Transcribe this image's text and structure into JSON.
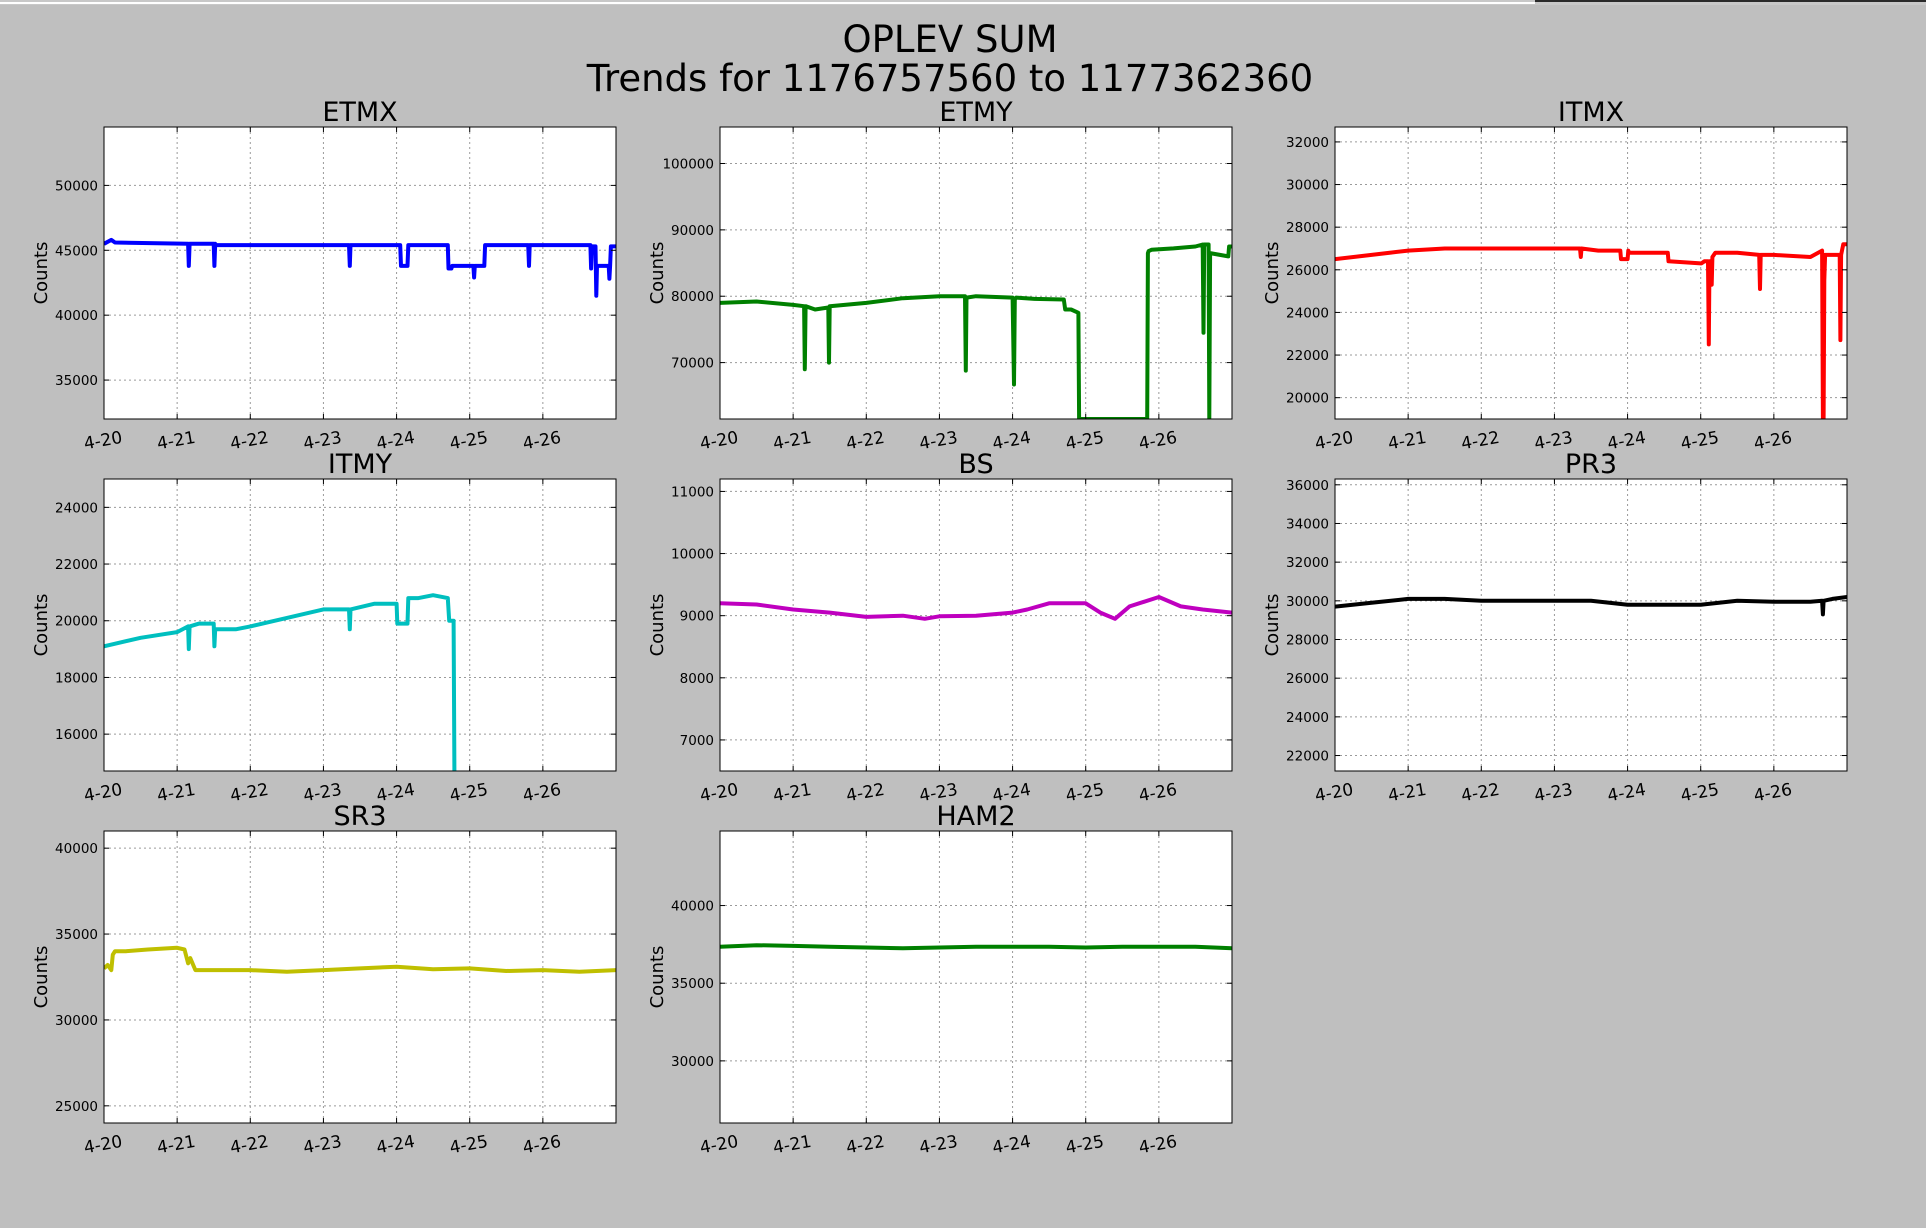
{
  "figure": {
    "title_line1": "OPLEV SUM",
    "title_line2": "Trends for 1176757560 to 1177362360"
  },
  "chart_data": [
    {
      "type": "line",
      "title": "ETMX",
      "ylabel": "Counts",
      "color": "#0000ff",
      "grid": true,
      "xlim": [
        0,
        7
      ],
      "ylim": [
        32000,
        54500
      ],
      "xticks": [
        0,
        1,
        2,
        3,
        4,
        5,
        6
      ],
      "xticklabels": [
        "4-20",
        "4-21",
        "4-22",
        "4-23",
        "4-24",
        "4-25",
        "4-26"
      ],
      "yticks": [
        35000,
        40000,
        45000,
        50000
      ],
      "series": [
        {
          "x": [
            0,
            0.1,
            0.15,
            1.15,
            1.16,
            1.17,
            1.18,
            1.5,
            1.51,
            1.52,
            1.53,
            2.3,
            3.35,
            3.36,
            3.37,
            3.38,
            4.0,
            4.05,
            4.06,
            4.15,
            4.16,
            4.2,
            4.7,
            4.71,
            4.75,
            4.76,
            5.05,
            5.06,
            5.07,
            5.08,
            5.2,
            5.21,
            5.8,
            5.81,
            5.82,
            5.83,
            6.65,
            6.66,
            6.67,
            6.68,
            6.72,
            6.73,
            6.74,
            6.75,
            6.9,
            6.91,
            6.92,
            6.93,
            6.94,
            7.0
          ],
          "y": [
            45500,
            45800,
            45600,
            45500,
            43800,
            45500,
            45500,
            45500,
            43800,
            45500,
            45400,
            45400,
            45400,
            43800,
            45400,
            45400,
            45400,
            45400,
            43800,
            43800,
            45400,
            45400,
            45400,
            43600,
            43600,
            43800,
            43800,
            42900,
            43800,
            43800,
            43800,
            45400,
            45400,
            43800,
            45400,
            45400,
            45400,
            43600,
            45300,
            45300,
            45300,
            41500,
            43800,
            43800,
            43800,
            42800,
            43800,
            45300,
            45300,
            45300
          ]
        }
      ]
    },
    {
      "type": "line",
      "title": "ETMY",
      "ylabel": "Counts",
      "color": "#008000",
      "grid": true,
      "xlim": [
        0,
        7
      ],
      "ylim": [
        61500,
        105500
      ],
      "xticks": [
        0,
        1,
        2,
        3,
        4,
        5,
        6
      ],
      "xticklabels": [
        "4-20",
        "4-21",
        "4-22",
        "4-23",
        "4-24",
        "4-25",
        "4-26"
      ],
      "yticks": [
        70000,
        80000,
        90000,
        100000
      ],
      "series": [
        {
          "x": [
            0,
            0.5,
            1.0,
            1.15,
            1.16,
            1.17,
            1.3,
            1.48,
            1.49,
            1.5,
            2.0,
            2.5,
            3.0,
            3.35,
            3.36,
            3.37,
            3.5,
            4.0,
            4.02,
            4.03,
            4.05,
            4.3,
            4.7,
            4.72,
            4.8,
            4.9,
            4.91,
            4.92,
            5.84,
            5.85,
            5.86,
            5.9,
            6.2,
            6.5,
            6.6,
            6.61,
            6.62,
            6.68,
            6.69,
            6.7,
            6.95,
            6.96,
            7.0
          ],
          "y": [
            79000,
            79200,
            78700,
            78500,
            69000,
            78500,
            78000,
            78300,
            70000,
            78500,
            79000,
            79700,
            80000,
            80000,
            68800,
            79800,
            80000,
            79800,
            66700,
            79500,
            79800,
            79600,
            79500,
            78000,
            78000,
            77500,
            61500,
            61500,
            61500,
            86500,
            86800,
            87000,
            87200,
            87500,
            87800,
            74500,
            87800,
            87800,
            61500,
            86500,
            86000,
            87500,
            87500
          ]
        }
      ]
    },
    {
      "type": "line",
      "title": "ITMX",
      "ylabel": "Counts",
      "color": "#ff0000",
      "grid": true,
      "xlim": [
        0,
        7
      ],
      "ylim": [
        19000,
        32700
      ],
      "xticks": [
        0,
        1,
        2,
        3,
        4,
        5,
        6
      ],
      "xticklabels": [
        "4-20",
        "4-21",
        "4-22",
        "4-23",
        "4-24",
        "4-25",
        "4-26"
      ],
      "yticks": [
        20000,
        22000,
        24000,
        26000,
        28000,
        30000,
        32000
      ],
      "series": [
        {
          "x": [
            0,
            0.5,
            1.0,
            1.5,
            2.0,
            2.5,
            3.0,
            3.35,
            3.36,
            3.37,
            3.6,
            3.9,
            3.91,
            4.0,
            4.01,
            4.02,
            4.5,
            4.55,
            4.56,
            5.0,
            5.01,
            5.05,
            5.1,
            5.11,
            5.12,
            5.13,
            5.15,
            5.16,
            5.2,
            5.5,
            5.8,
            5.81,
            5.82,
            6.0,
            6.5,
            6.66,
            6.67,
            6.68,
            6.69,
            6.7,
            6.71,
            6.9,
            6.91,
            6.92,
            6.95,
            7.0
          ],
          "y": [
            26500,
            26700,
            26900,
            27000,
            27000,
            27000,
            27000,
            27000,
            26600,
            27000,
            26900,
            26900,
            26500,
            26500,
            26900,
            26800,
            26800,
            26800,
            26400,
            26300,
            26300,
            26400,
            26400,
            22500,
            26400,
            26400,
            25300,
            26600,
            26800,
            26800,
            26700,
            25100,
            26700,
            26700,
            26600,
            26900,
            19000,
            19000,
            25500,
            26700,
            26700,
            26700,
            22700,
            26700,
            27200,
            27200
          ]
        }
      ]
    },
    {
      "type": "line",
      "title": "ITMY",
      "ylabel": "Counts",
      "color": "#00bfbf",
      "grid": true,
      "xlim": [
        0,
        7
      ],
      "ylim": [
        14700,
        25000
      ],
      "xticks": [
        0,
        1,
        2,
        3,
        4,
        5,
        6
      ],
      "xticklabels": [
        "4-20",
        "4-21",
        "4-22",
        "4-23",
        "4-24",
        "4-25",
        "4-26"
      ],
      "yticks": [
        16000,
        18000,
        20000,
        22000,
        24000
      ],
      "series": [
        {
          "x": [
            0,
            0.5,
            1.0,
            1.15,
            1.16,
            1.17,
            1.3,
            1.5,
            1.51,
            1.52,
            1.8,
            2.0,
            2.5,
            3.0,
            3.35,
            3.36,
            3.37,
            3.7,
            4.0,
            4.01,
            4.02,
            4.15,
            4.16,
            4.3,
            4.5,
            4.7,
            4.72,
            4.73,
            4.78,
            4.79,
            4.8
          ],
          "y": [
            19100,
            19400,
            19600,
            19800,
            19000,
            19800,
            19900,
            19900,
            19100,
            19700,
            19700,
            19800,
            20100,
            20400,
            20400,
            19700,
            20400,
            20600,
            20600,
            19900,
            19900,
            19900,
            20800,
            20800,
            20900,
            20800,
            20000,
            20000,
            20000,
            14700,
            14700
          ]
        }
      ]
    },
    {
      "type": "line",
      "title": "BS",
      "ylabel": "Counts",
      "color": "#bf00bf",
      "grid": true,
      "xlim": [
        0,
        7
      ],
      "ylim": [
        6500,
        11200
      ],
      "xticks": [
        0,
        1,
        2,
        3,
        4,
        5,
        6
      ],
      "xticklabels": [
        "4-20",
        "4-21",
        "4-22",
        "4-23",
        "4-24",
        "4-25",
        "4-26"
      ],
      "yticks": [
        7000,
        8000,
        9000,
        10000,
        11000
      ],
      "series": [
        {
          "x": [
            0,
            0.5,
            1.0,
            1.5,
            2.0,
            2.5,
            2.8,
            3.0,
            3.5,
            4.0,
            4.2,
            4.5,
            5.0,
            5.2,
            5.4,
            5.6,
            6.0,
            6.3,
            6.6,
            7.0
          ],
          "y": [
            9200,
            9180,
            9100,
            9050,
            8980,
            9000,
            8950,
            8990,
            9000,
            9050,
            9100,
            9200,
            9200,
            9050,
            8950,
            9150,
            9300,
            9150,
            9100,
            9050
          ]
        }
      ]
    },
    {
      "type": "line",
      "title": "PR3",
      "ylabel": "Counts",
      "color": "#000000",
      "grid": true,
      "xlim": [
        0,
        7
      ],
      "ylim": [
        21200,
        36300
      ],
      "xticks": [
        0,
        1,
        2,
        3,
        4,
        5,
        6
      ],
      "xticklabels": [
        "4-20",
        "4-21",
        "4-22",
        "4-23",
        "4-24",
        "4-25",
        "4-26"
      ],
      "yticks": [
        22000,
        24000,
        26000,
        28000,
        30000,
        32000,
        34000,
        36000
      ],
      "series": [
        {
          "x": [
            0,
            0.5,
            1.0,
            1.5,
            2.0,
            2.5,
            3.0,
            3.5,
            4.0,
            4.5,
            5.0,
            5.5,
            6.0,
            6.5,
            6.66,
            6.67,
            6.68,
            6.8,
            7.0
          ],
          "y": [
            29700,
            29900,
            30100,
            30100,
            30000,
            30000,
            30000,
            30000,
            29800,
            29800,
            29800,
            30000,
            29950,
            29950,
            30000,
            29300,
            30000,
            30100,
            30200
          ]
        }
      ]
    },
    {
      "type": "line",
      "title": "SR3",
      "ylabel": "Counts",
      "color": "#bfbf00",
      "grid": true,
      "xlim": [
        0,
        7
      ],
      "ylim": [
        24000,
        41000
      ],
      "xticks": [
        0,
        1,
        2,
        3,
        4,
        5,
        6
      ],
      "xticklabels": [
        "4-20",
        "4-21",
        "4-22",
        "4-23",
        "4-24",
        "4-25",
        "4-26"
      ],
      "yticks": [
        25000,
        30000,
        35000,
        40000
      ],
      "series": [
        {
          "x": [
            0,
            0.05,
            0.1,
            0.12,
            0.15,
            0.3,
            0.6,
            1.0,
            1.1,
            1.15,
            1.18,
            1.25,
            1.5,
            2.0,
            2.5,
            3.0,
            3.5,
            4.0,
            4.5,
            5.0,
            5.5,
            6.0,
            6.5,
            7.0
          ],
          "y": [
            33000,
            33200,
            32900,
            33800,
            34000,
            34000,
            34100,
            34200,
            34100,
            33300,
            33600,
            32900,
            32900,
            32900,
            32800,
            32900,
            33000,
            33100,
            32950,
            33000,
            32850,
            32900,
            32800,
            32900
          ]
        }
      ]
    },
    {
      "type": "line",
      "title": "HAM2",
      "ylabel": "Counts",
      "color": "#008000",
      "grid": true,
      "xlim": [
        0,
        7
      ],
      "ylim": [
        26000,
        44800
      ],
      "xticks": [
        0,
        1,
        2,
        3,
        4,
        5,
        6
      ],
      "xticklabels": [
        "4-20",
        "4-21",
        "4-22",
        "4-23",
        "4-24",
        "4-25",
        "4-26"
      ],
      "yticks": [
        30000,
        35000,
        40000
      ],
      "series": [
        {
          "x": [
            0,
            0.5,
            1.0,
            1.5,
            2.0,
            2.5,
            3.0,
            3.5,
            4.0,
            4.5,
            5.0,
            5.5,
            6.0,
            6.5,
            7.0
          ],
          "y": [
            37350,
            37450,
            37400,
            37350,
            37300,
            37250,
            37300,
            37350,
            37350,
            37350,
            37300,
            37350,
            37350,
            37350,
            37250
          ]
        }
      ]
    }
  ]
}
